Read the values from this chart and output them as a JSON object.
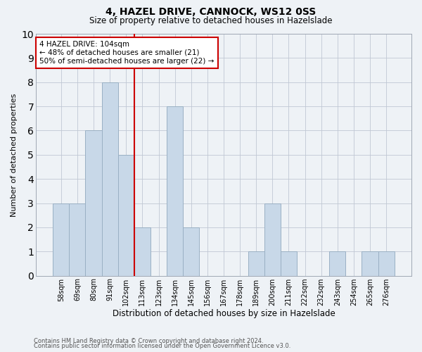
{
  "title": "4, HAZEL DRIVE, CANNOCK, WS12 0SS",
  "subtitle": "Size of property relative to detached houses in Hazelslade",
  "xlabel": "Distribution of detached houses by size in Hazelslade",
  "ylabel": "Number of detached properties",
  "footnote1": "Contains HM Land Registry data © Crown copyright and database right 2024.",
  "footnote2": "Contains public sector information licensed under the Open Government Licence v3.0.",
  "bin_labels": [
    "58sqm",
    "69sqm",
    "80sqm",
    "91sqm",
    "102sqm",
    "113sqm",
    "123sqm",
    "134sqm",
    "145sqm",
    "156sqm",
    "167sqm",
    "178sqm",
    "189sqm",
    "200sqm",
    "211sqm",
    "222sqm",
    "232sqm",
    "243sqm",
    "254sqm",
    "265sqm",
    "276sqm"
  ],
  "bar_heights": [
    3,
    3,
    6,
    8,
    5,
    2,
    0,
    7,
    2,
    0,
    0,
    0,
    1,
    3,
    1,
    0,
    0,
    1,
    0,
    1,
    1
  ],
  "bar_color": "#c8d8e8",
  "bar_edge_color": "#9ab0c4",
  "grid_color": "#c0c8d4",
  "background_color": "#eef2f6",
  "vline_color": "#cc0000",
  "annotation_title": "4 HAZEL DRIVE: 104sqm",
  "annotation_line1": "← 48% of detached houses are smaller (21)",
  "annotation_line2": "50% of semi-detached houses are larger (22) →",
  "annotation_box_color": "#ffffff",
  "annotation_box_edge": "#cc0000",
  "ylim": [
    0,
    10
  ],
  "yticks": [
    0,
    1,
    2,
    3,
    4,
    5,
    6,
    7,
    8,
    9,
    10
  ],
  "vline_bin_index": 4
}
